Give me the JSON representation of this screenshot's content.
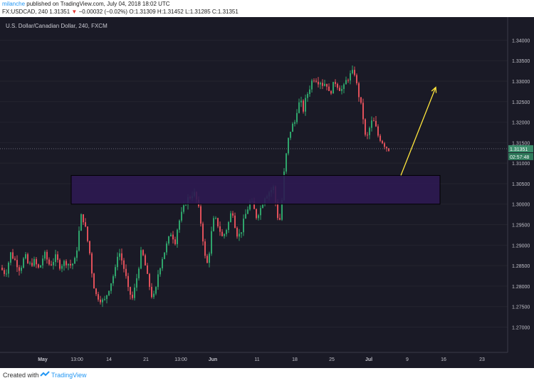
{
  "header": {
    "author": "milanche",
    "published_text": "published on TradingView.com, July 04, 2018 18:02 UTC",
    "symbol_line": "FX:USDCAD, 240",
    "last": "1.31351",
    "change_arrow": "▼",
    "change": "−0.00032 (−0.02%)",
    "o_label": "O:",
    "o_value": "1.31309",
    "h_label": "H:",
    "h_value": "1.31452",
    "l_label": "L:",
    "l_value": "1.31285",
    "c_label": "C:",
    "c_value": "1.31351"
  },
  "chart_title": "U.S. Dollar/Canadian Dollar, 240, FXCM",
  "footer": {
    "created_with": "Created with",
    "brand": "TradingView"
  },
  "colors": {
    "background": "#1a1a26",
    "up": "#2fa46b",
    "down": "#e0505a",
    "zone_fill": "#2d1a52",
    "arrow": "#ffe63c",
    "price_line": "#8f93a3"
  },
  "chart_data": {
    "type": "candlestick",
    "title": "U.S. Dollar/Canadian Dollar, 240, FXCM",
    "ylim": [
      1.268,
      1.3425
    ],
    "yticks": [
      "1.34000",
      "1.33500",
      "1.33000",
      "1.32500",
      "1.32000",
      "1.31500",
      "1.31000",
      "1.30500",
      "1.30000",
      "1.29500",
      "1.29000",
      "1.28500",
      "1.28000",
      "1.27500",
      "1.27000"
    ],
    "xticks": [
      "May",
      "13:00",
      "14",
      "21",
      "13:00",
      "Jun",
      "11",
      "18",
      "25",
      "Jul",
      "9",
      "16",
      "23"
    ],
    "current_price": "1.31351",
    "countdown": "02:57:48",
    "close_path": [
      [
        0,
        1.2845
      ],
      [
        8,
        1.283
      ],
      [
        15,
        1.288
      ],
      [
        22,
        1.286
      ],
      [
        28,
        1.284
      ],
      [
        35,
        1.2875
      ],
      [
        40,
        1.285
      ],
      [
        48,
        1.286
      ],
      [
        55,
        1.284
      ],
      [
        62,
        1.288
      ],
      [
        70,
        1.285
      ],
      [
        78,
        1.287
      ],
      [
        84,
        1.285
      ],
      [
        92,
        1.286
      ],
      [
        100,
        1.285
      ],
      [
        106,
        1.2865
      ],
      [
        110,
        1.292
      ],
      [
        114,
        1.297
      ],
      [
        118,
        1.296
      ],
      [
        122,
        1.292
      ],
      [
        126,
        1.288
      ],
      [
        130,
        1.282
      ],
      [
        134,
        1.278
      ],
      [
        140,
        1.277
      ],
      [
        146,
        1.276
      ],
      [
        152,
        1.279
      ],
      [
        156,
        1.281
      ],
      [
        162,
        1.284
      ],
      [
        166,
        1.289
      ],
      [
        170,
        1.287
      ],
      [
        176,
        1.283
      ],
      [
        180,
        1.279
      ],
      [
        186,
        1.277
      ],
      [
        190,
        1.28
      ],
      [
        194,
        1.284
      ],
      [
        198,
        1.288
      ],
      [
        202,
        1.287
      ],
      [
        206,
        1.283
      ],
      [
        210,
        1.28
      ],
      [
        214,
        1.277
      ],
      [
        218,
        1.278
      ],
      [
        222,
        1.283
      ],
      [
        228,
        1.287
      ],
      [
        234,
        1.29
      ],
      [
        240,
        1.293
      ],
      [
        246,
        1.291
      ],
      [
        250,
        1.295
      ],
      [
        256,
        1.298
      ],
      [
        262,
        1.301
      ],
      [
        268,
        1.302
      ],
      [
        272,
        1.303
      ],
      [
        276,
        1.301
      ],
      [
        280,
        1.298
      ],
      [
        284,
        1.293
      ],
      [
        288,
        1.287
      ],
      [
        292,
        1.285
      ],
      [
        296,
        1.292
      ],
      [
        300,
        1.296
      ],
      [
        304,
        1.296
      ],
      [
        308,
        1.294
      ],
      [
        312,
        1.292
      ],
      [
        316,
        1.293
      ],
      [
        322,
        1.296
      ],
      [
        326,
        1.299
      ],
      [
        330,
        1.295
      ],
      [
        334,
        1.292
      ],
      [
        338,
        1.293
      ],
      [
        344,
        1.297
      ],
      [
        348,
        1.299
      ],
      [
        352,
        1.301
      ],
      [
        356,
        1.299
      ],
      [
        360,
        1.297
      ],
      [
        366,
        1.299
      ],
      [
        372,
        1.302
      ],
      [
        378,
        1.303
      ],
      [
        384,
        1.304
      ],
      [
        390,
        1.297
      ],
      [
        394,
        1.296
      ],
      [
        398,
        1.306
      ],
      [
        402,
        1.312
      ],
      [
        406,
        1.317
      ],
      [
        410,
        1.319
      ],
      [
        414,
        1.32
      ],
      [
        418,
        1.324
      ],
      [
        422,
        1.325
      ],
      [
        426,
        1.323
      ],
      [
        430,
        1.326
      ],
      [
        434,
        1.328
      ],
      [
        438,
        1.33
      ],
      [
        442,
        1.331
      ],
      [
        446,
        1.33
      ],
      [
        450,
        1.33
      ],
      [
        454,
        1.329
      ],
      [
        458,
        1.33
      ],
      [
        462,
        1.327
      ],
      [
        466,
        1.328
      ],
      [
        470,
        1.33
      ],
      [
        474,
        1.329
      ],
      [
        478,
        1.328
      ],
      [
        482,
        1.328
      ],
      [
        486,
        1.33
      ],
      [
        490,
        1.331
      ],
      [
        494,
        1.332
      ],
      [
        498,
        1.332
      ],
      [
        502,
        1.328
      ],
      [
        506,
        1.325
      ],
      [
        510,
        1.321
      ],
      [
        514,
        1.315
      ],
      [
        518,
        1.318
      ],
      [
        522,
        1.32
      ],
      [
        526,
        1.32
      ],
      [
        530,
        1.317
      ],
      [
        534,
        1.316
      ],
      [
        538,
        1.315
      ],
      [
        542,
        1.314
      ],
      [
        546,
        1.3135
      ]
    ],
    "zone": {
      "x_from": 100,
      "x_to": 618,
      "y_low": 1.3,
      "y_high": 1.307
    },
    "arrow": {
      "x_from": 563,
      "y_from": 1.307,
      "x_to": 612,
      "y_to": 1.3285
    }
  }
}
